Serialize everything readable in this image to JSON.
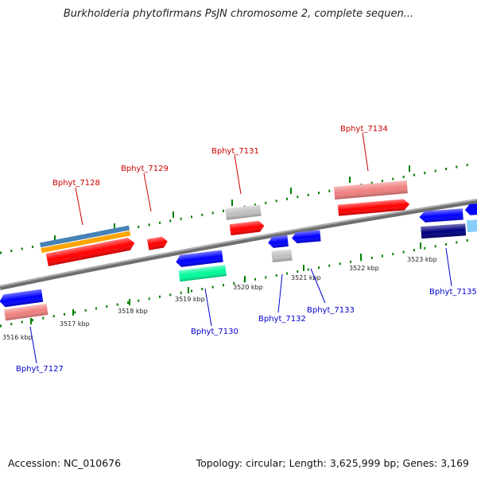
{
  "title": "Burkholderia phytofirmans PsJN chromosome 2, complete sequen...",
  "footer": {
    "accession": "Accession: NC_010676",
    "topology": "Topology: circular; Length: 3,625,999 bp; Genes: 3,169"
  },
  "colors": {
    "forward_label": "#cc0000",
    "reverse_label": "#0000cc",
    "red": "#ff0000",
    "pink": "#f08080",
    "gray": "#c0c0c0",
    "blue": "#0000ff",
    "teal": "#00fa9a",
    "navy": "#000080",
    "steelblue": "#4682b4",
    "orange": "#ffa500",
    "lightblue": "#87cefa",
    "backbone": "#808080",
    "tick": "#008000"
  },
  "scale": {
    "unit": "kbp",
    "ticks": [
      {
        "label": "3516 kbp"
      },
      {
        "label": "3517 kbp"
      },
      {
        "label": "3518 kbp"
      },
      {
        "label": "3519 kbp"
      },
      {
        "label": "3520 kbp"
      },
      {
        "label": "3521 kbp"
      },
      {
        "label": "3522 kbp"
      },
      {
        "label": "3523 kbp"
      }
    ]
  },
  "genes_forward": [
    {
      "label": "Bphyt_7128"
    },
    {
      "label": "Bphyt_7129"
    },
    {
      "label": "Bphyt_7131"
    },
    {
      "label": "Bphyt_7134"
    }
  ],
  "genes_reverse": [
    {
      "label": "Bphyt_7127"
    },
    {
      "label": "Bphyt_7130"
    },
    {
      "label": "Bphyt_7132"
    },
    {
      "label": "Bphyt_7133"
    },
    {
      "label": "Bphyt_7135"
    }
  ]
}
